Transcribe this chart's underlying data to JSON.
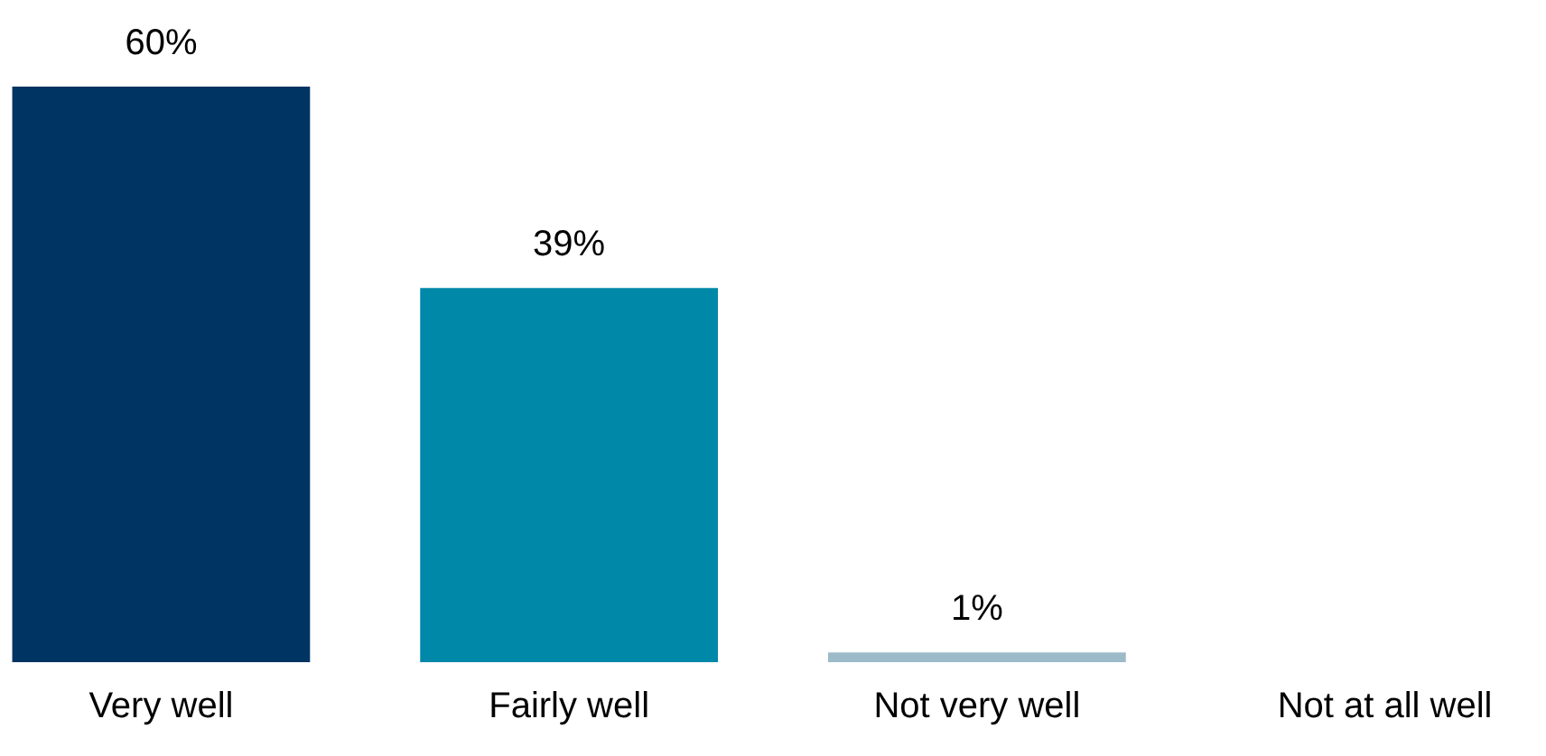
{
  "chart_data": {
    "type": "bar",
    "categories": [
      "Very well",
      "Fairly well",
      "Not very well",
      "Not at all well"
    ],
    "values": [
      60,
      39,
      1,
      null
    ],
    "colors": [
      "#003462",
      "#0088a8",
      "#9cbac8",
      "#9cbac8"
    ],
    "value_labels": [
      "60%",
      "39%",
      "1%",
      null
    ],
    "grid": false,
    "legend": false
  }
}
